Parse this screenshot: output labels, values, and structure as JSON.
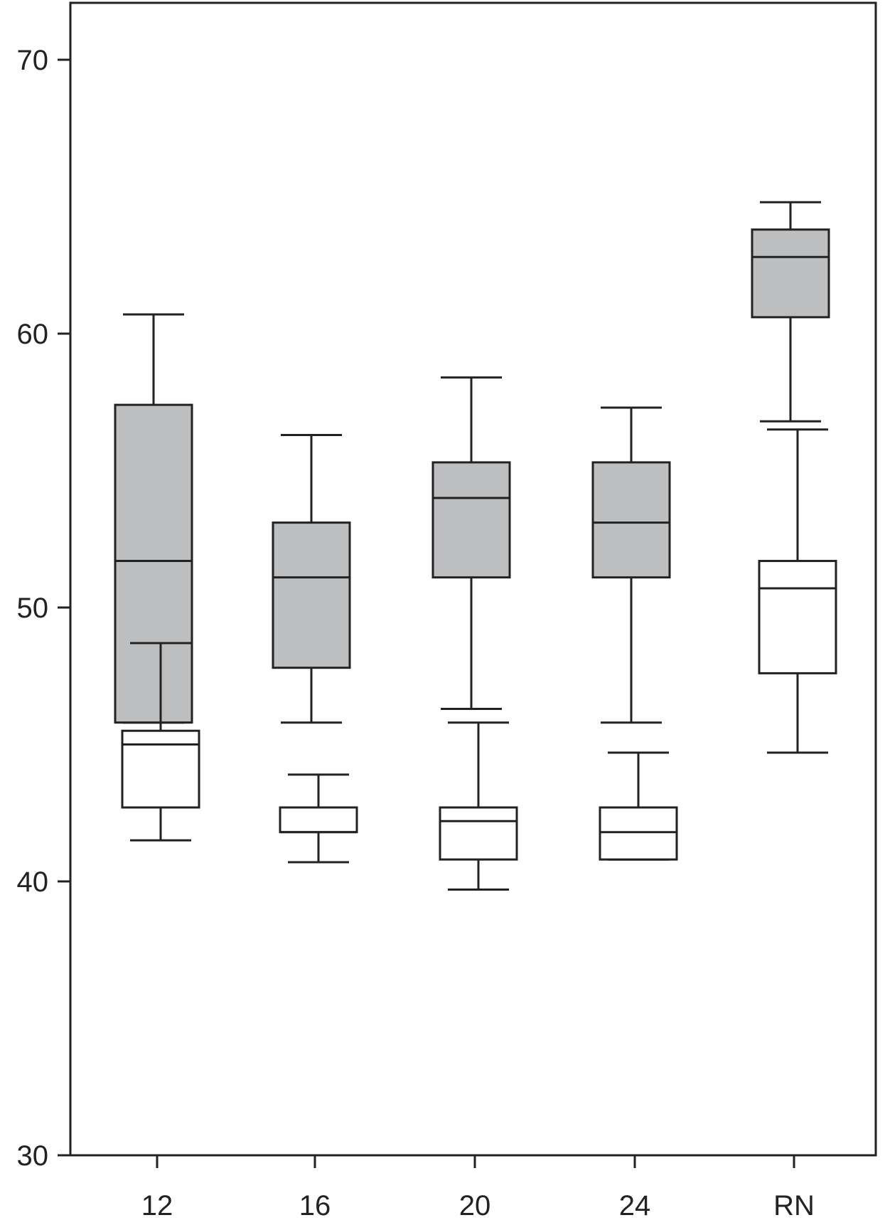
{
  "chart_data": {
    "type": "box",
    "title": "",
    "xlabel": "",
    "ylabel": "",
    "ylim": [
      30,
      72
    ],
    "yticks": [
      30,
      40,
      50,
      60,
      70
    ],
    "categories": [
      "12",
      "16",
      "20",
      "24",
      "RN"
    ],
    "grid": false,
    "legend": "none",
    "series": [
      {
        "fill": "#bdbec0",
        "boxes": [
          {
            "whisker_low": 45.8,
            "q1": 45.8,
            "median": 51.7,
            "q3": 57.4,
            "whisker_high": 60.7
          },
          {
            "whisker_low": 45.8,
            "q1": 47.8,
            "median": 51.1,
            "q3": 53.1,
            "whisker_high": 56.3
          },
          {
            "whisker_low": 46.3,
            "q1": 51.1,
            "median": 54.0,
            "q3": 55.3,
            "whisker_high": 58.4
          },
          {
            "whisker_low": 45.8,
            "q1": 51.1,
            "median": 53.1,
            "q3": 55.3,
            "whisker_high": 57.3
          },
          {
            "whisker_low": 56.8,
            "q1": 60.6,
            "median": 62.8,
            "q3": 63.8,
            "whisker_high": 64.8
          }
        ]
      },
      {
        "fill": "#ffffff",
        "boxes": [
          {
            "whisker_low": 41.5,
            "q1": 42.7,
            "median": 45.0,
            "q3": 45.5,
            "whisker_high": 48.7
          },
          {
            "whisker_low": 40.7,
            "q1": 41.8,
            "median": 41.8,
            "q3": 42.7,
            "whisker_high": 43.9
          },
          {
            "whisker_low": 39.7,
            "q1": 40.8,
            "median": 42.2,
            "q3": 42.7,
            "whisker_high": 45.8
          },
          {
            "whisker_low": 40.8,
            "q1": 40.8,
            "median": 41.8,
            "q3": 42.7,
            "whisker_high": 44.7
          },
          {
            "whisker_low": 44.7,
            "q1": 47.6,
            "median": 50.7,
            "q3": 51.7,
            "whisker_high": 56.5
          }
        ]
      }
    ]
  }
}
